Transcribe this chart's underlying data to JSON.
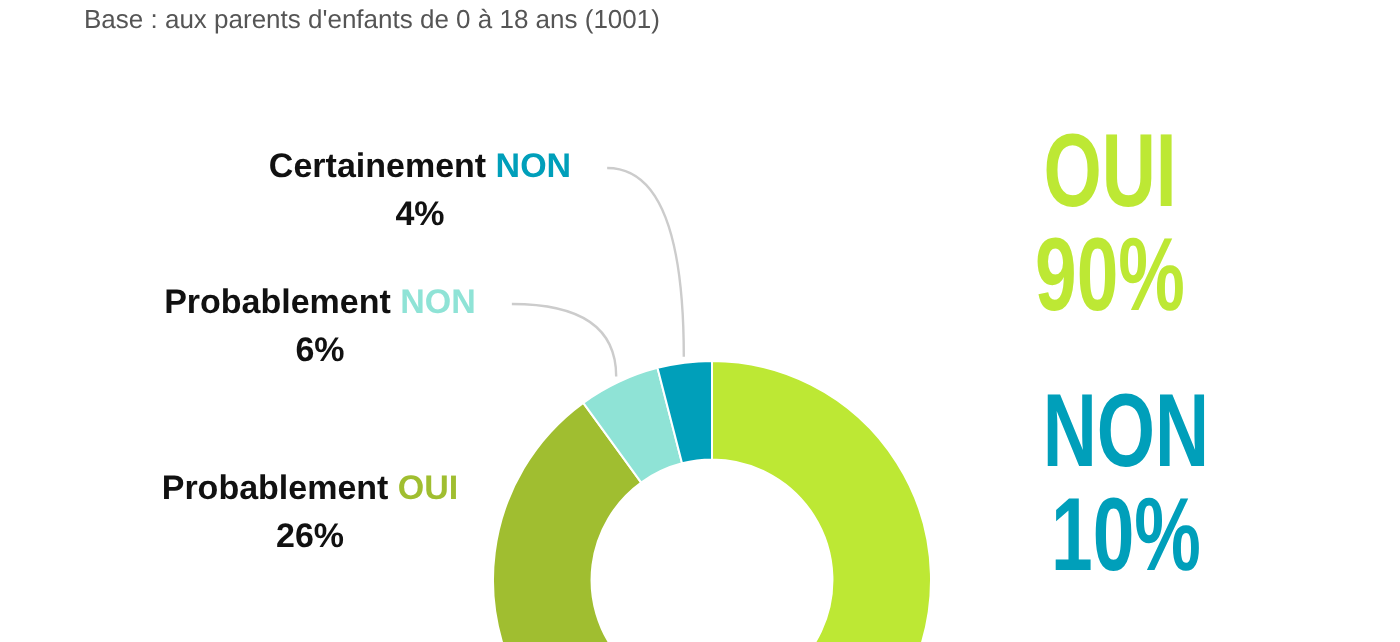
{
  "chart_data": {
    "type": "donut",
    "subtitle": "Base : aux parents d'enfants de 0 à 18 ans (1001)",
    "categories": [
      null,
      "Probablement OUI",
      "Probablement NON",
      "Certainement NON"
    ],
    "values": [
      64,
      26,
      6,
      4
    ],
    "colors": [
      "#bde834",
      "#a0be30",
      "#8fe3d6",
      "#009fba"
    ],
    "value_labels": [
      null,
      "26%",
      "6%",
      "4%"
    ],
    "annotations": [
      "OUI 90%",
      "NON 10%"
    ],
    "legend": false
  }
}
